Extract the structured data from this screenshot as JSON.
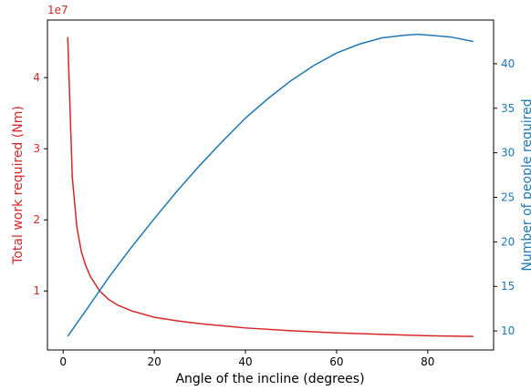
{
  "chart_data": {
    "type": "line",
    "xlabel": "Angle of the incline (degrees)",
    "ylabel": "Total work required (Nm)",
    "y2label": "Number of people required",
    "y_offset_label": "1e7",
    "xlim": [
      -3.45,
      94.45
    ],
    "xticks": [
      0,
      20,
      40,
      60,
      80
    ],
    "ylim": [
      0.17,
      4.81
    ],
    "yticks": [
      1,
      2,
      3,
      4
    ],
    "y2lim": [
      7.86,
      44.9
    ],
    "y2ticks": [
      10,
      15,
      20,
      25,
      30,
      35,
      40
    ],
    "ycolor": "#d62728",
    "y2color": "#1f77b4",
    "series": [
      {
        "name": "Total work required (Nm)",
        "color": "#d62728",
        "x": [
          1,
          2,
          3,
          4,
          5,
          6,
          8,
          10,
          12,
          15,
          20,
          25,
          30,
          40,
          50,
          60,
          70,
          80,
          90
        ],
        "values": [
          4.57,
          2.6,
          1.9,
          1.55,
          1.35,
          1.2,
          1.0,
          0.88,
          0.8,
          0.72,
          0.63,
          0.58,
          0.54,
          0.48,
          0.44,
          0.41,
          0.39,
          0.37,
          0.36
        ]
      },
      {
        "name": "Number of people required",
        "color": "#1f77b4",
        "axis": "y2",
        "x": [
          1,
          5,
          10,
          15,
          20,
          25,
          30,
          35,
          40,
          45,
          50,
          55,
          60,
          65,
          70,
          75,
          78,
          85,
          90
        ],
        "values": [
          9.4,
          12.3,
          16.0,
          19.4,
          22.6,
          25.7,
          28.6,
          31.3,
          33.9,
          36.1,
          38.1,
          39.8,
          41.2,
          42.2,
          42.9,
          43.2,
          43.3,
          43.0,
          42.5
        ]
      }
    ]
  }
}
